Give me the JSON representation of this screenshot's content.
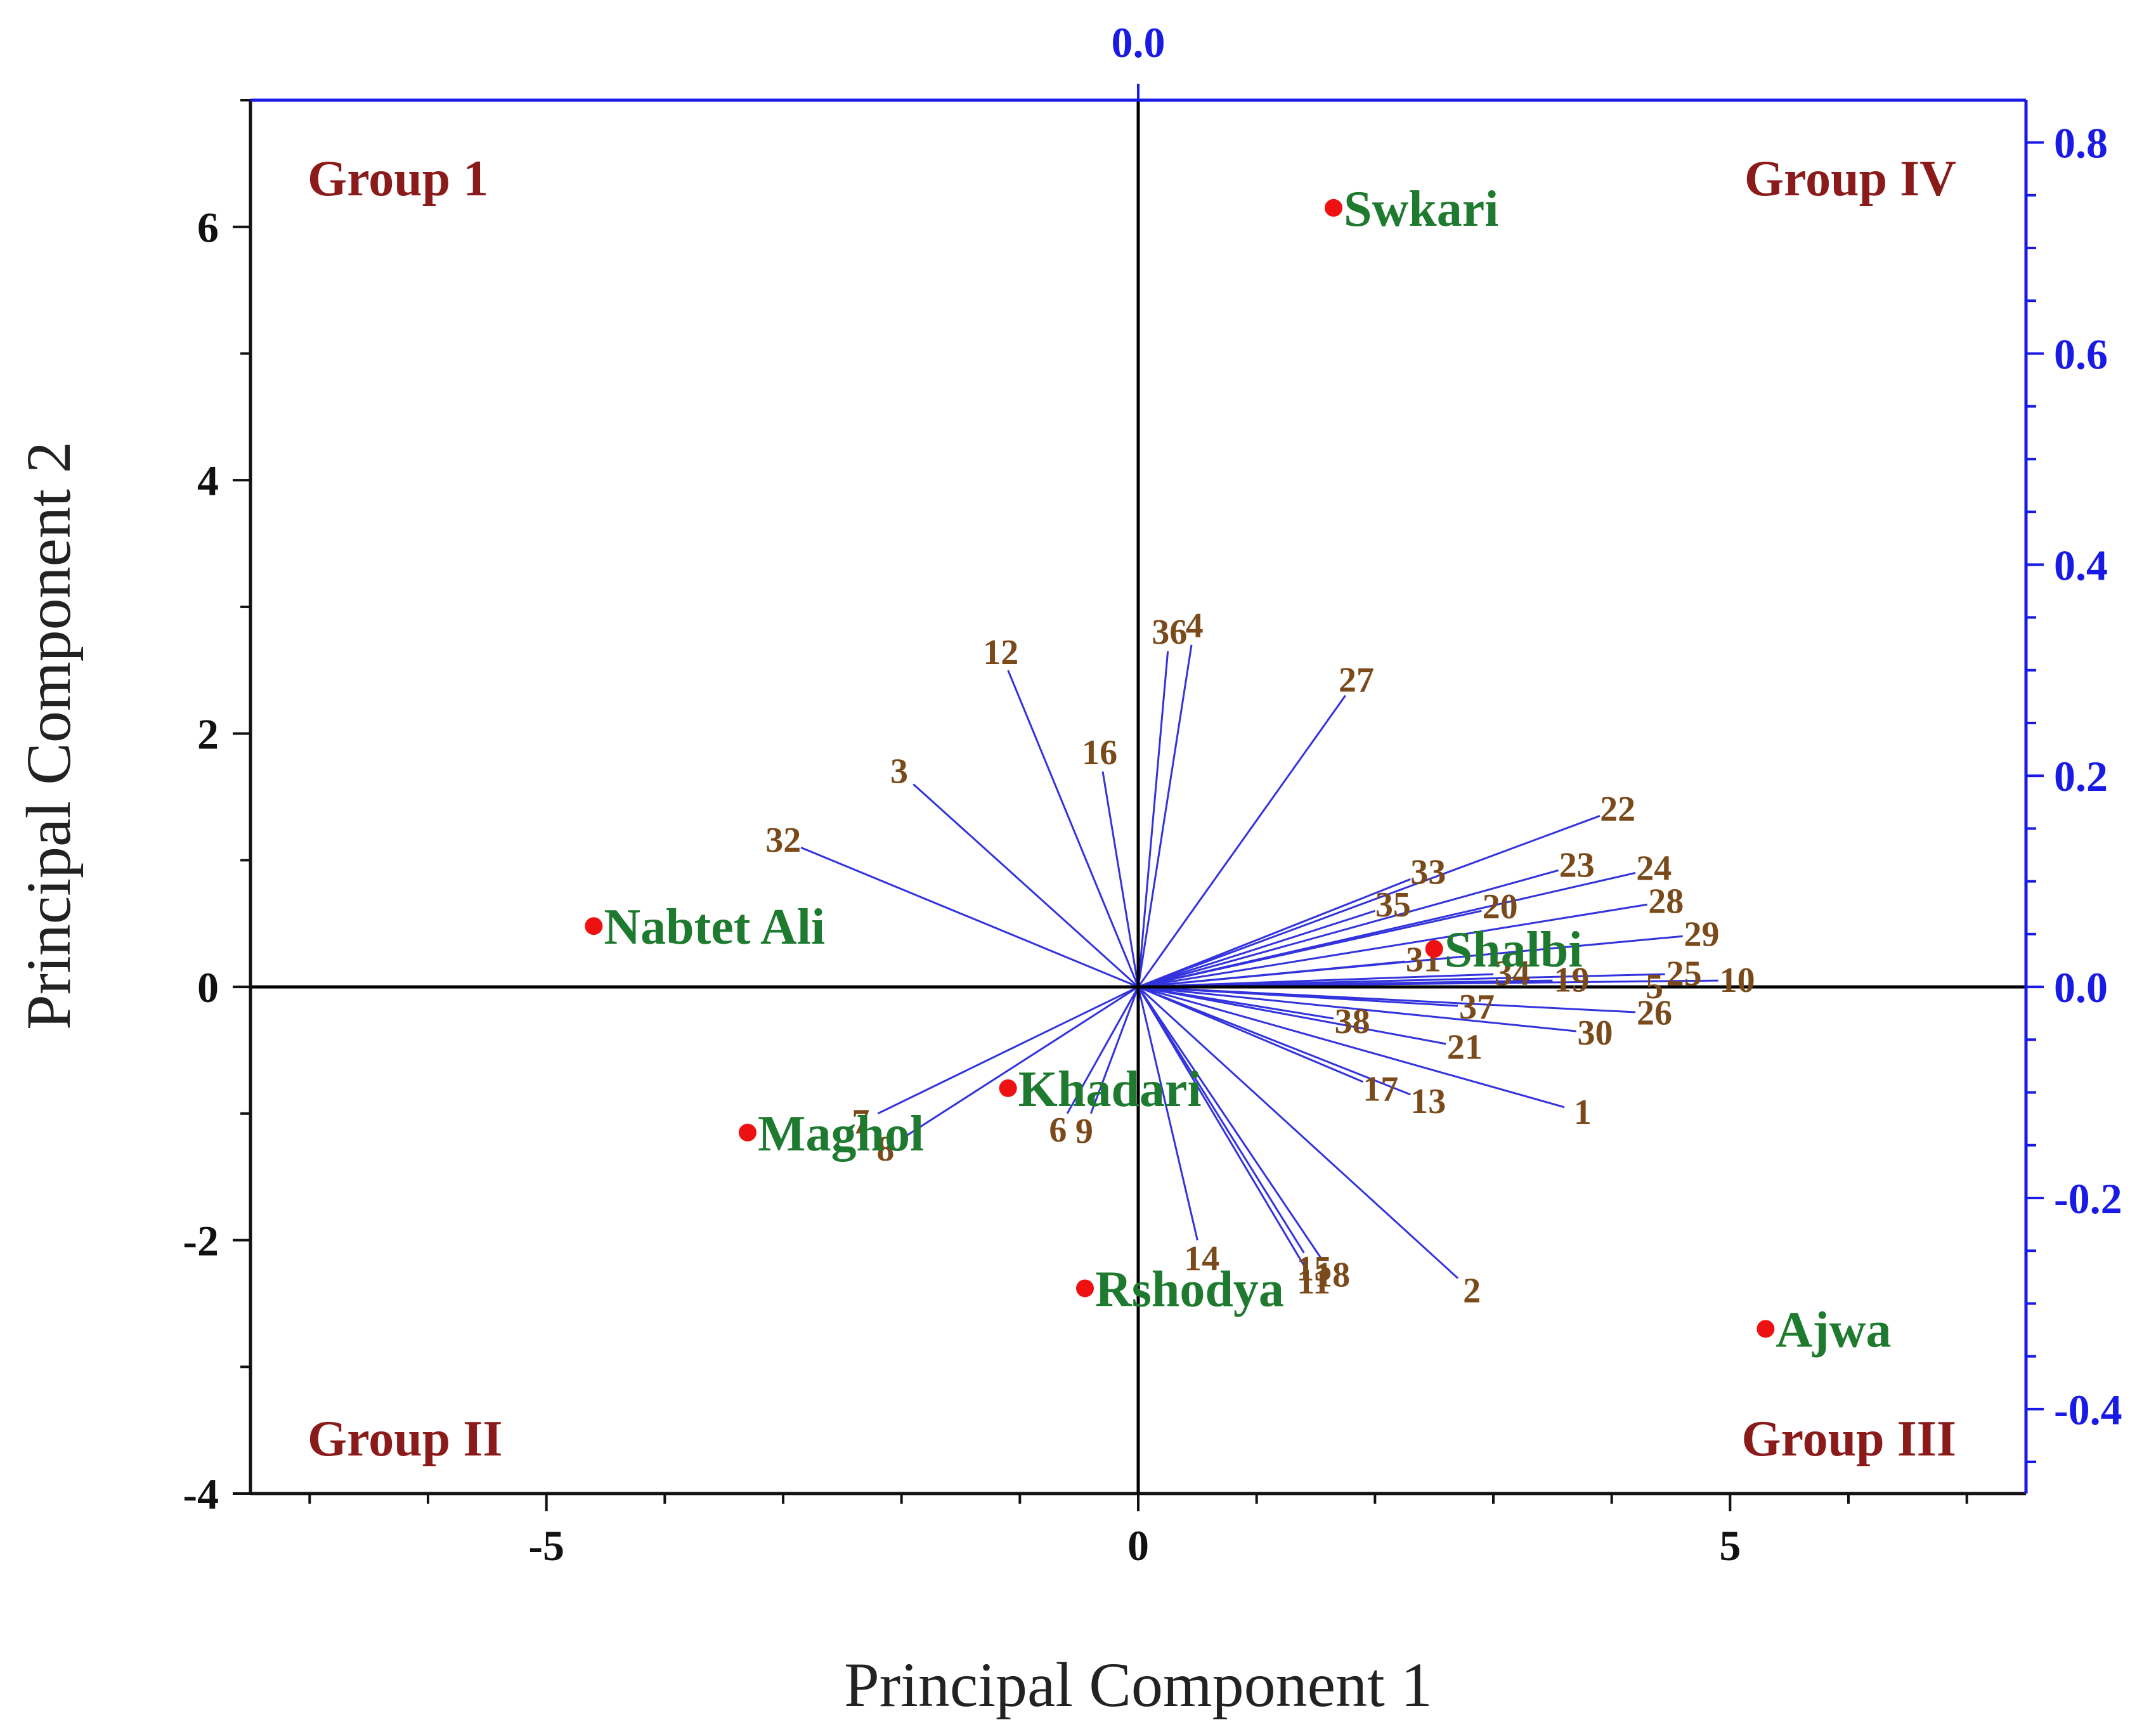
{
  "chart_data": {
    "type": "scatter",
    "subtype": "biplot",
    "xlabel": "Principal Component 1",
    "ylabel": "Principal Component 2",
    "xlim": [
      -7.5,
      7.5
    ],
    "ylim": [
      -4,
      7
    ],
    "x_ticks": [
      {
        "value": -5,
        "label": "-5"
      },
      {
        "value": 0,
        "label": "0"
      },
      {
        "value": 5,
        "label": "5"
      }
    ],
    "y_ticks": [
      {
        "value": -4,
        "label": "-4"
      },
      {
        "value": -2,
        "label": "-2"
      },
      {
        "value": 0,
        "label": "0"
      },
      {
        "value": 2,
        "label": "2"
      },
      {
        "value": 4,
        "label": "4"
      },
      {
        "value": 6,
        "label": "6"
      }
    ],
    "top_axis": {
      "ticks": [
        {
          "value": 0,
          "label": "0.0"
        }
      ]
    },
    "right_axis": {
      "range": [
        -0.48,
        0.84
      ],
      "ticks": [
        {
          "value": 0.8,
          "label": "0.8"
        },
        {
          "value": 0.6,
          "label": "0.6"
        },
        {
          "value": 0.4,
          "label": "0.4"
        },
        {
          "value": 0.2,
          "label": "0.2"
        },
        {
          "value": 0.0,
          "label": "0.0"
        },
        {
          "value": -0.2,
          "label": "-0.2"
        },
        {
          "value": -0.4,
          "label": "-0.4"
        }
      ]
    },
    "groups": [
      {
        "label": "Group 1",
        "quadrant": "top-left"
      },
      {
        "label": "Group IV",
        "quadrant": "top-right"
      },
      {
        "label": "Group II",
        "quadrant": "bottom-left"
      },
      {
        "label": "Group III",
        "quadrant": "bottom-right"
      }
    ],
    "samples": [
      {
        "name": "Swkari",
        "x": 1.65,
        "y": 6.15
      },
      {
        "name": "Nabtet Ali",
        "x": -4.6,
        "y": 0.48
      },
      {
        "name": "Shalbi",
        "x": 2.5,
        "y": 0.3
      },
      {
        "name": "Khadari",
        "x": -1.1,
        "y": -0.8
      },
      {
        "name": "Maghol",
        "x": -3.3,
        "y": -1.15
      },
      {
        "name": "Rshodya",
        "x": -0.45,
        "y": -2.38
      },
      {
        "name": "Ajwa",
        "x": 5.3,
        "y": -2.7
      }
    ],
    "loadings": [
      {
        "label": "1",
        "x": 3.6,
        "y": -0.95
      },
      {
        "label": "2",
        "x": 2.7,
        "y": -2.3
      },
      {
        "label": "3",
        "x": -1.9,
        "y": 1.6
      },
      {
        "label": "4",
        "x": 0.45,
        "y": 2.7
      },
      {
        "label": "6",
        "x": -0.6,
        "y": -1.0
      },
      {
        "label": "7",
        "x": -2.2,
        "y": -1.0
      },
      {
        "label": "8",
        "x": -2.0,
        "y": -1.2
      },
      {
        "label": "9",
        "x": -0.4,
        "y": -1.0
      },
      {
        "label": "10",
        "x": 4.9,
        "y": 0.05
      },
      {
        "label": "11",
        "x": 1.4,
        "y": -2.2
      },
      {
        "label": "12",
        "x": -1.1,
        "y": 2.5
      },
      {
        "label": "13",
        "x": 2.3,
        "y": -0.85
      },
      {
        "label": "14",
        "x": 0.5,
        "y": -2.0
      },
      {
        "label": "15",
        "x": 1.4,
        "y": -2.1
      },
      {
        "label": "16",
        "x": -0.3,
        "y": 1.7
      },
      {
        "label": "17",
        "x": 1.9,
        "y": -0.75
      },
      {
        "label": "18",
        "x": 1.55,
        "y": -2.15
      },
      {
        "label": "19",
        "x": 3.5,
        "y": 0.05
      },
      {
        "label": "20",
        "x": 2.9,
        "y": 0.6
      },
      {
        "label": "21",
        "x": 2.6,
        "y": -0.45
      },
      {
        "label": "22",
        "x": 3.9,
        "y": 1.35
      },
      {
        "label": "23",
        "x": 3.55,
        "y": 0.92
      },
      {
        "label": "24",
        "x": 4.2,
        "y": 0.9
      },
      {
        "label": "25",
        "x": 4.45,
        "y": 0.1
      },
      {
        "label": "26",
        "x": 4.2,
        "y": -0.2
      },
      {
        "label": "27",
        "x": 1.75,
        "y": 2.3
      },
      {
        "label": "28",
        "x": 4.3,
        "y": 0.65
      },
      {
        "label": "29",
        "x": 4.6,
        "y": 0.4
      },
      {
        "label": "30",
        "x": 3.7,
        "y": -0.35
      },
      {
        "label": "31",
        "x": 2.25,
        "y": 0.2
      },
      {
        "label": "32",
        "x": -2.85,
        "y": 1.1
      },
      {
        "label": "33",
        "x": 2.3,
        "y": 0.85
      },
      {
        "label": "35",
        "x": 2.0,
        "y": 0.6
      },
      {
        "label": "36",
        "x": 0.25,
        "y": 2.65
      },
      {
        "label": "37",
        "x": 2.7,
        "y": -0.15
      },
      {
        "label": "38",
        "x": 1.65,
        "y": -0.25
      },
      {
        "label": "5",
        "x": 4.2,
        "y": 0.0
      },
      {
        "label": "34",
        "x": 3.0,
        "y": 0.1
      }
    ]
  },
  "colors": {
    "axis_left_bottom": "#111111",
    "axis_top_right": "#1a1ae6",
    "loading_vector": "#3333dd",
    "sample_point": "#ee1111",
    "sample_label": "#1e7a2e",
    "variable_label": "#7a4a1a",
    "group_label": "#8b1a1a"
  }
}
